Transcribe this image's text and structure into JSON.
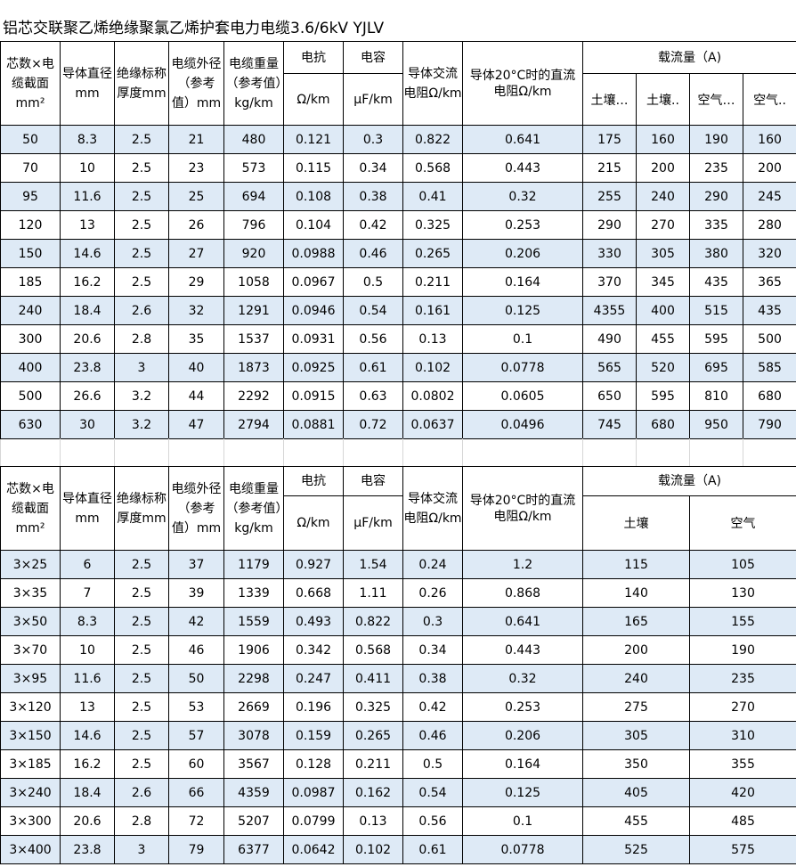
{
  "title": "铝芯交联聚乙烯绝缘聚氯乙烯护套电力电缆3.6/6kV YJLV",
  "table1": {
    "headers": {
      "section": "芯数×电缆截面mm²",
      "conductor_diameter": "导体直径mm",
      "insulation_thickness": "绝缘标称厚度mm",
      "outer_diameter": "电缆外径（参考值）mm",
      "weight": "电缆重量（参考值）kg/km",
      "reactance": "电抗",
      "reactance_unit": "Ω/km",
      "capacitance": "电容",
      "capacitance_unit": "μF/km",
      "ac_resistance": "导体交流电阻Ω/km",
      "dc_resistance": "导体20°C时的直流电阻Ω/km",
      "current": "载流量（A)",
      "sub": [
        "土壤…",
        "土壤..",
        "空气…",
        "空气.."
      ]
    },
    "rows": [
      [
        "50",
        "8.3",
        "2.5",
        "21",
        "480",
        "0.121",
        "0.3",
        "0.822",
        "0.641",
        "175",
        "160",
        "190",
        "160"
      ],
      [
        "70",
        "10",
        "2.5",
        "23",
        "573",
        "0.115",
        "0.34",
        "0.568",
        "0.443",
        "215",
        "200",
        "235",
        "200"
      ],
      [
        "95",
        "11.6",
        "2.5",
        "25",
        "694",
        "0.108",
        "0.38",
        "0.41",
        "0.32",
        "255",
        "240",
        "290",
        "245"
      ],
      [
        "120",
        "13",
        "2.5",
        "26",
        "796",
        "0.104",
        "0.42",
        "0.325",
        "0.253",
        "290",
        "270",
        "335",
        "280"
      ],
      [
        "150",
        "14.6",
        "2.5",
        "27",
        "920",
        "0.0988",
        "0.46",
        "0.265",
        "0.206",
        "330",
        "305",
        "380",
        "320"
      ],
      [
        "185",
        "16.2",
        "2.5",
        "29",
        "1058",
        "0.0967",
        "0.5",
        "0.211",
        "0.164",
        "370",
        "345",
        "435",
        "365"
      ],
      [
        "240",
        "18.4",
        "2.6",
        "32",
        "1291",
        "0.0946",
        "0.54",
        "0.161",
        "0.125",
        "4355",
        "400",
        "515",
        "435"
      ],
      [
        "300",
        "20.6",
        "2.8",
        "35",
        "1537",
        "0.0931",
        "0.56",
        "0.13",
        "0.1",
        "490",
        "455",
        "595",
        "500"
      ],
      [
        "400",
        "23.8",
        "3",
        "40",
        "1873",
        "0.0925",
        "0.61",
        "0.102",
        "0.0778",
        "565",
        "520",
        "695",
        "585"
      ],
      [
        "500",
        "26.6",
        "3.2",
        "44",
        "2292",
        "0.0915",
        "0.63",
        "0.0802",
        "0.0605",
        "650",
        "595",
        "810",
        "680"
      ],
      [
        "630",
        "30",
        "3.2",
        "47",
        "2794",
        "0.0881",
        "0.72",
        "0.0637",
        "0.0496",
        "745",
        "680",
        "950",
        "790"
      ]
    ]
  },
  "table2": {
    "headers": {
      "section": "芯数×电缆截面mm²",
      "conductor_diameter": "导体直径mm",
      "insulation_thickness": "绝缘标称厚度mm",
      "outer_diameter": "电缆外径（参考值）mm",
      "weight": "电缆重量（参考值）kg/km",
      "reactance": "电抗",
      "reactance_unit": "Ω/km",
      "capacitance": "电容",
      "capacitance_unit": "μF/km",
      "ac_resistance": "导体交流电阻Ω/km",
      "dc_resistance": "导体20°C时的直流电阻Ω/km",
      "current": "载流量（A)",
      "sub": [
        "土壤",
        "空气"
      ]
    },
    "rows": [
      [
        "3×25",
        "6",
        "2.5",
        "37",
        "1179",
        "0.927",
        "1.54",
        "0.24",
        "1.2",
        "115",
        "105"
      ],
      [
        "3×35",
        "7",
        "2.5",
        "39",
        "1339",
        "0.668",
        "1.11",
        "0.26",
        "0.868",
        "140",
        "130"
      ],
      [
        "3×50",
        "8.3",
        "2.5",
        "42",
        "1559",
        "0.493",
        "0.822",
        "0.3",
        "0.641",
        "165",
        "155"
      ],
      [
        "3×70",
        "10",
        "2.5",
        "46",
        "1906",
        "0.342",
        "0.568",
        "0.34",
        "0.443",
        "200",
        "190"
      ],
      [
        "3×95",
        "11.6",
        "2.5",
        "50",
        "2298",
        "0.247",
        "0.411",
        "0.38",
        "0.32",
        "240",
        "235"
      ],
      [
        "3×120",
        "13",
        "2.5",
        "53",
        "2669",
        "0.196",
        "0.325",
        "0.42",
        "0.253",
        "275",
        "270"
      ],
      [
        "3×150",
        "14.6",
        "2.5",
        "57",
        "3078",
        "0.159",
        "0.265",
        "0.46",
        "0.206",
        "305",
        "310"
      ],
      [
        "3×185",
        "16.2",
        "2.5",
        "60",
        "3567",
        "0.128",
        "0.211",
        "0.5",
        "0.164",
        "350",
        "355"
      ],
      [
        "3×240",
        "18.4",
        "2.6",
        "66",
        "4359",
        "0.0987",
        "0.162",
        "0.54",
        "0.125",
        "405",
        "420"
      ],
      [
        "3×300",
        "20.6",
        "2.8",
        "72",
        "5207",
        "0.0799",
        "0.13",
        "0.56",
        "0.1",
        "455",
        "485"
      ],
      [
        "3×400",
        "23.8",
        "3",
        "79",
        "6377",
        "0.0642",
        "0.102",
        "0.61",
        "0.0778",
        "525",
        "575"
      ]
    ]
  }
}
